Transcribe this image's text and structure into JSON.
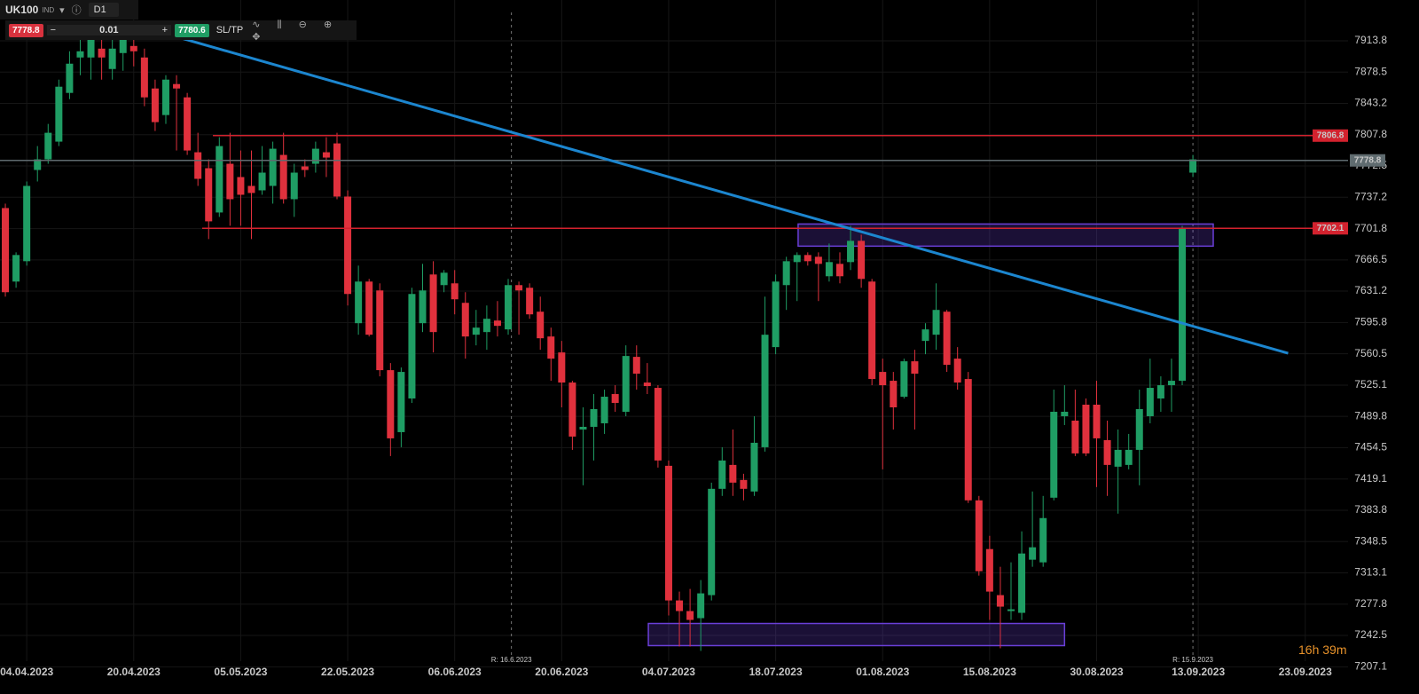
{
  "toolbar": {
    "symbol": "UK100",
    "symbol_type": "IND",
    "timeframe": "D1",
    "sell": "7778.8",
    "volume": "0.01",
    "buy": "7780.6",
    "sltp": "SL/TP"
  },
  "countdown": "16h 39m",
  "chart_data": {
    "type": "candlestick",
    "up_color": "#1f9d64",
    "down_color": "#e0313d",
    "xlim": [
      -0.5,
      125.5
    ],
    "ylim": [
      7193.4,
      7959.9
    ],
    "grid": true,
    "xticks": [
      {
        "value": 2,
        "label": "04.04.2023"
      },
      {
        "value": 12,
        "label": "20.04.2023"
      },
      {
        "value": 22,
        "label": "05.05.2023"
      },
      {
        "value": 32,
        "label": "22.05.2023"
      },
      {
        "value": 42,
        "label": "06.06.2023"
      },
      {
        "value": 52,
        "label": "20.06.2023"
      },
      {
        "value": 62,
        "label": "04.07.2023"
      },
      {
        "value": 72,
        "label": "18.07.2023"
      },
      {
        "value": 82,
        "label": "01.08.2023"
      },
      {
        "value": 92,
        "label": "15.08.2023"
      },
      {
        "value": 102,
        "label": "30.08.2023"
      },
      {
        "value": 111.5,
        "label": "13.09.2023"
      },
      {
        "value": 121.5,
        "label": "23.09.2023"
      }
    ],
    "yticks": [
      7913.8,
      7878.5,
      7843.2,
      7807.8,
      7772.5,
      7737.2,
      7701.8,
      7666.5,
      7631.2,
      7595.8,
      7560.5,
      7525.1,
      7489.8,
      7454.5,
      7419.1,
      7383.8,
      7348.5,
      7313.1,
      7277.8,
      7242.5,
      7207.1
    ],
    "open": [
      7725,
      7642,
      7665,
      7768,
      7780,
      7800,
      7855,
      7895,
      7895,
      7905,
      7882,
      7900,
      7908,
      7895,
      7860,
      7830,
      7865,
      7850,
      7788,
      7770,
      7720,
      7775,
      7760,
      7750,
      7745,
      7750,
      7785,
      7735,
      7772,
      7775,
      7788,
      7798,
      7738,
      7595,
      7642,
      7632,
      7542,
      7472,
      7510,
      7595,
      7650,
      7638,
      7640,
      7618,
      7582,
      7585,
      7598,
      7588,
      7638,
      7635,
      7608,
      7580,
      7562,
      7528,
      7475,
      7478,
      7482,
      7515,
      7495,
      7557,
      7528,
      7522,
      7434,
      7282,
      7270,
      7262,
      7288,
      7408,
      7435,
      7418,
      7405,
      7455,
      7568,
      7638,
      7664,
      7672,
      7670,
      7648,
      7662,
      7664,
      7688,
      7642,
      7540,
      7530,
      7512,
      7552,
      7575,
      7582,
      7608,
      7555,
      7532,
      7395,
      7340,
      7288,
      7270,
      7268,
      7328,
      7325,
      7398,
      7490,
      7485,
      7503,
      7503,
      7463,
      7433,
      7435,
      7452,
      7490,
      7510,
      7525,
      7530,
      7765
    ],
    "high": [
      7730,
      7675,
      7755,
      7795,
      7820,
      7870,
      7902,
      7915,
      7925,
      7920,
      7915,
      7925,
      7920,
      7905,
      7870,
      7875,
      7875,
      7855,
      7810,
      7780,
      7805,
      7810,
      7790,
      7790,
      7795,
      7800,
      7810,
      7775,
      7780,
      7800,
      7805,
      7810,
      7745,
      7660,
      7645,
      7640,
      7550,
      7545,
      7635,
      7662,
      7665,
      7655,
      7655,
      7630,
      7610,
      7615,
      7620,
      7645,
      7642,
      7640,
      7625,
      7590,
      7575,
      7530,
      7500,
      7515,
      7520,
      7525,
      7570,
      7570,
      7550,
      7525,
      7440,
      7292,
      7295,
      7305,
      7415,
      7455,
      7475,
      7425,
      7490,
      7625,
      7650,
      7670,
      7675,
      7675,
      7675,
      7685,
      7675,
      7705,
      7695,
      7645,
      7555,
      7540,
      7555,
      7565,
      7595,
      7640,
      7610,
      7568,
      7540,
      7400,
      7355,
      7320,
      7325,
      7360,
      7405,
      7400,
      7520,
      7525,
      7520,
      7510,
      7530,
      7485,
      7475,
      7470,
      7520,
      7555,
      7535,
      7555,
      7705,
      7785
    ],
    "low": [
      7625,
      7635,
      7660,
      7755,
      7775,
      7795,
      7848,
      7875,
      7870,
      7870,
      7870,
      7880,
      7885,
      7840,
      7812,
      7820,
      7790,
      7785,
      7750,
      7690,
      7715,
      7705,
      7705,
      7690,
      7740,
      7730,
      7730,
      7715,
      7760,
      7765,
      7760,
      7735,
      7615,
      7582,
      7580,
      7535,
      7445,
      7455,
      7505,
      7585,
      7562,
      7630,
      7605,
      7555,
      7570,
      7565,
      7580,
      7582,
      7582,
      7600,
      7565,
      7530,
      7500,
      7452,
      7412,
      7440,
      7470,
      7495,
      7490,
      7520,
      7515,
      7432,
      7265,
      7230,
      7230,
      7225,
      7282,
      7400,
      7400,
      7395,
      7400,
      7450,
      7560,
      7610,
      7620,
      7660,
      7620,
      7642,
      7640,
      7655,
      7635,
      7525,
      7430,
      7475,
      7510,
      7475,
      7560,
      7565,
      7540,
      7520,
      7392,
      7310,
      7260,
      7228,
      7260,
      7260,
      7320,
      7320,
      7395,
      7480,
      7445,
      7445,
      7410,
      7400,
      7380,
      7430,
      7412,
      7482,
      7495,
      7495,
      7525,
      7760
    ],
    "close": [
      7630,
      7672,
      7750,
      7780,
      7810,
      7862,
      7888,
      7902,
      7915,
      7895,
      7905,
      7915,
      7902,
      7850,
      7822,
      7870,
      7860,
      7790,
      7758,
      7710,
      7795,
      7735,
      7740,
      7742,
      7765,
      7792,
      7735,
      7765,
      7768,
      7792,
      7782,
      7738,
      7628,
      7642,
      7582,
      7542,
      7465,
      7540,
      7628,
      7632,
      7585,
      7652,
      7622,
      7580,
      7590,
      7600,
      7592,
      7638,
      7632,
      7605,
      7578,
      7555,
      7528,
      7467,
      7478,
      7498,
      7512,
      7505,
      7558,
      7538,
      7524,
      7440,
      7282,
      7270,
      7260,
      7290,
      7408,
      7440,
      7415,
      7408,
      7460,
      7582,
      7642,
      7665,
      7672,
      7665,
      7662,
      7664,
      7648,
      7688,
      7645,
      7532,
      7525,
      7500,
      7552,
      7538,
      7588,
      7610,
      7548,
      7528,
      7395,
      7315,
      7292,
      7275,
      7272,
      7335,
      7342,
      7375,
      7495,
      7495,
      7448,
      7448,
      7465,
      7435,
      7452,
      7452,
      7498,
      7522,
      7525,
      7530,
      7702,
      7780
    ],
    "hlines": [
      {
        "value": 7806.8,
        "from": 19.4,
        "color": "#d3222e"
      },
      {
        "value": 7778.8,
        "from": -0.5,
        "color": "#5f6b6f"
      },
      {
        "value": 7702.1,
        "from": 18.4,
        "color": "#d3222e"
      }
    ],
    "zones": [
      {
        "x": [
          74.1,
          112.9
        ],
        "y": [
          7682,
          7707
        ],
        "color": "#6a3fd8"
      },
      {
        "x": [
          60.1,
          99
        ],
        "y": [
          7231,
          7256
        ],
        "color": "#6a3fd8"
      }
    ],
    "trendline": {
      "x": [
        16.1,
        119.9
      ],
      "y": [
        7918,
        7561
      ],
      "color": "#1c86cf"
    },
    "vlines": [
      {
        "x": 47.3,
        "label": "R: 16.6.2023"
      },
      {
        "x": 111,
        "label": "R: 15.9.2023"
      }
    ]
  }
}
